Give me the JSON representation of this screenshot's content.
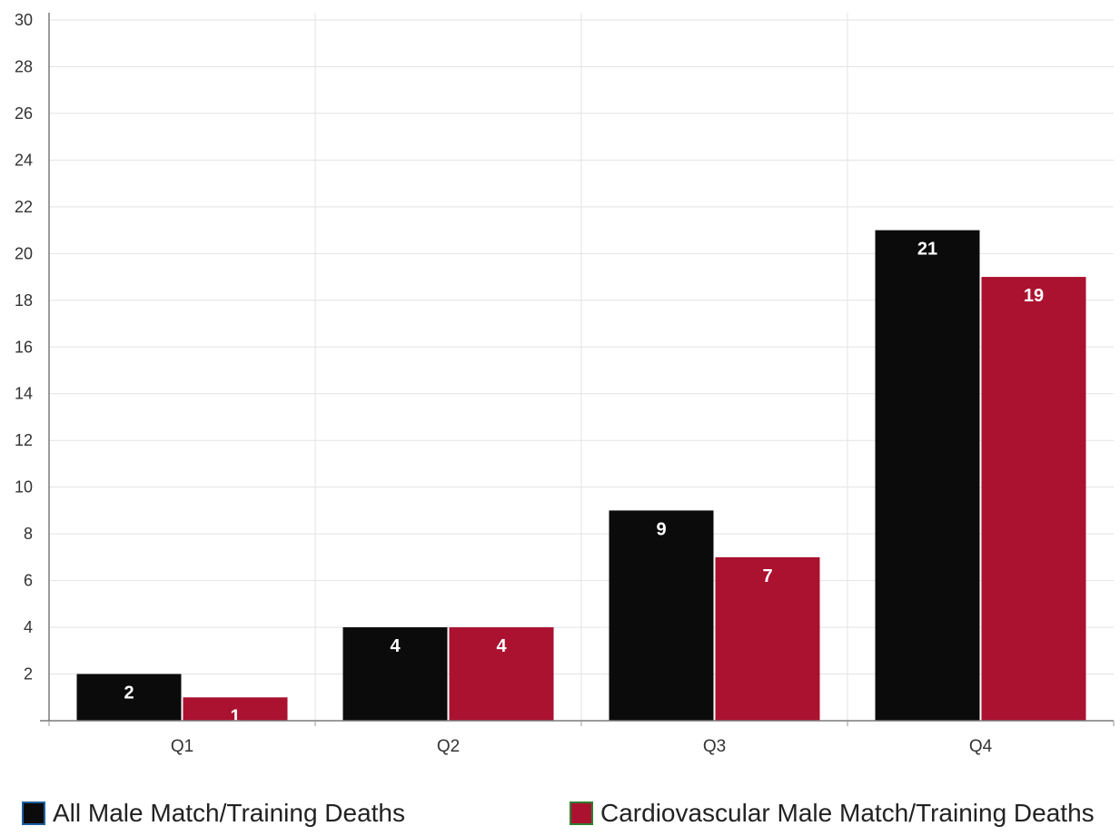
{
  "chart_data": {
    "type": "bar",
    "title": "",
    "xlabel": "",
    "ylabel": "",
    "categories": [
      "Q1",
      "Q2",
      "Q3",
      "Q4"
    ],
    "series": [
      {
        "name": "All Male Match/Training Deaths",
        "values": [
          2,
          4,
          9,
          21
        ],
        "color": "#0b0b0b",
        "swatch_border": "#1f5fa0"
      },
      {
        "name": "Cardiovascular Male Match/Training Deaths",
        "values": [
          1,
          4,
          7,
          19
        ],
        "color": "#ab1230",
        "swatch_border": "#2f7d32"
      }
    ],
    "ylim": [
      0,
      30
    ],
    "yticks": [
      2,
      4,
      6,
      8,
      10,
      12,
      14,
      16,
      18,
      20,
      22,
      24,
      26,
      28,
      30
    ],
    "data_labels": true,
    "grid": true,
    "legend_position": "bottom"
  }
}
